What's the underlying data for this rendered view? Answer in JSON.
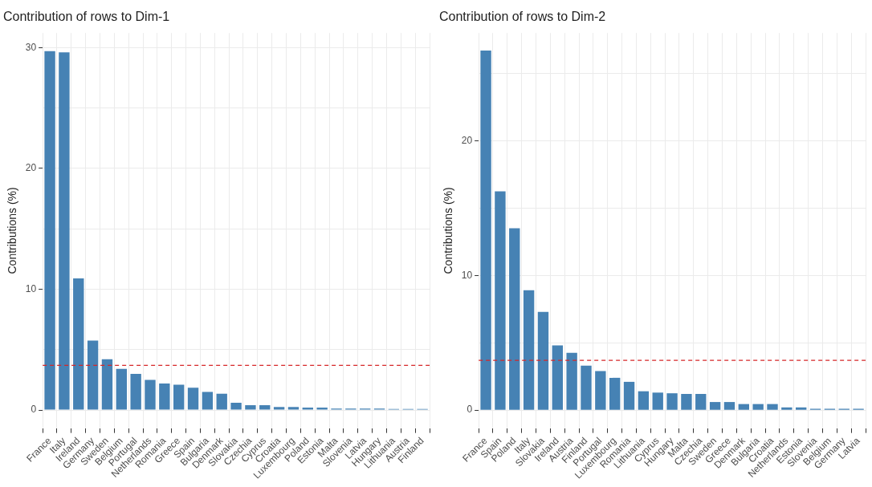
{
  "chart_data": [
    {
      "type": "bar",
      "title": "Contribution of rows to Dim-1",
      "ylabel": "Contributions (%)",
      "categories": [
        "France",
        "Italy",
        "Ireland",
        "Germany",
        "Sweden",
        "Belgium",
        "Portugal",
        "Netherlands",
        "Romania",
        "Greece",
        "Spain",
        "Bulgaria",
        "Denmark",
        "Slovakia",
        "Czechia",
        "Cyprus",
        "Croatia",
        "Luxembourg",
        "Poland",
        "Estonia",
        "Malta",
        "Slovenia",
        "Latvia",
        "Hungary",
        "Lithuania",
        "Austria",
        "Finland"
      ],
      "values": [
        29.7,
        29.6,
        10.9,
        5.75,
        4.2,
        3.4,
        3.0,
        2.5,
        2.2,
        2.1,
        1.85,
        1.5,
        1.35,
        0.6,
        0.4,
        0.4,
        0.25,
        0.25,
        0.2,
        0.2,
        0.12,
        0.12,
        0.12,
        0.12,
        0.08,
        0.08,
        0.08
      ],
      "color": "#4682b4",
      "ylim": [
        -1.5,
        31.2
      ],
      "yticks": [
        0,
        {
          "value": 5,
          "label": null
        },
        10,
        {
          "value": 15,
          "label": null
        },
        20,
        {
          "value": 25,
          "label": null
        },
        30
      ],
      "ref_lines": [
        {
          "axis": "y",
          "value": 3.7,
          "color": "#d62728",
          "line_style": "dashed"
        }
      ],
      "grid": true,
      "legend": false
    },
    {
      "type": "bar",
      "title": "Contribution of rows to Dim-2",
      "ylabel": "Contributions (%)",
      "categories": [
        "France",
        "Spain",
        "Poland",
        "Italy",
        "Slovakia",
        "Ireland",
        "Austria",
        "Finland",
        "Portugal",
        "Luxembourg",
        "Romania",
        "Lithuania",
        "Cyprus",
        "Hungary",
        "Malta",
        "Czechia",
        "Sweden",
        "Greece",
        "Denmark",
        "Bulgaria",
        "Croatia",
        "Netherlands",
        "Estonia",
        "Slovenia",
        "Belgium",
        "Germany",
        "Latvia"
      ],
      "values": [
        26.7,
        16.25,
        13.5,
        8.9,
        7.3,
        4.8,
        4.25,
        3.3,
        2.9,
        2.4,
        2.1,
        1.4,
        1.3,
        1.25,
        1.2,
        1.2,
        0.6,
        0.6,
        0.45,
        0.45,
        0.45,
        0.2,
        0.2,
        0.1,
        0.1,
        0.1,
        0.1
      ],
      "color": "#4682b4",
      "ylim": [
        -1.34,
        28.0
      ],
      "yticks": [
        0,
        {
          "value": 5,
          "label": null
        },
        10,
        {
          "value": 15,
          "label": null
        },
        20,
        {
          "value": 25,
          "label": null
        }
      ],
      "ref_lines": [
        {
          "axis": "y",
          "value": 3.7,
          "color": "#d62728",
          "line_style": "dashed"
        }
      ],
      "grid": true,
      "legend": false
    }
  ]
}
